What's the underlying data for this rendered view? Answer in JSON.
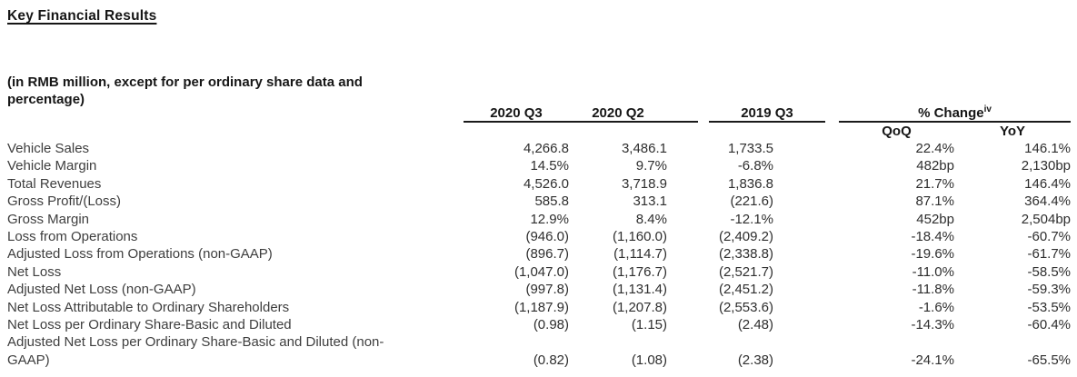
{
  "page": {
    "title": "Key Financial Results",
    "subtitle": "(in RMB million, except for per ordinary share data and percentage)"
  },
  "table": {
    "col_headers": [
      "2020 Q3",
      "2020 Q2",
      "2019 Q3"
    ],
    "change": {
      "label": "% Change",
      "sup": "iv",
      "sub": [
        "QoQ",
        "YoY"
      ]
    },
    "rows": [
      {
        "label": "Vehicle Sales",
        "q3_2020": "4,266.8",
        "q2_2020": "3,486.1",
        "q3_2019": "1,733.5",
        "qoq": "22.4%",
        "yoy": "146.1%"
      },
      {
        "label": "Vehicle Margin",
        "q3_2020": "14.5%",
        "q2_2020": "9.7%",
        "q3_2019": "-6.8%",
        "qoq": "482bp",
        "yoy": "2,130bp"
      },
      {
        "label": "Total Revenues",
        "q3_2020": "4,526.0",
        "q2_2020": "3,718.9",
        "q3_2019": "1,836.8",
        "qoq": "21.7%",
        "yoy": "146.4%"
      },
      {
        "label": "Gross Profit/(Loss)",
        "q3_2020": "585.8",
        "q2_2020": "313.1",
        "q3_2019": "(221.6)",
        "qoq": "87.1%",
        "yoy": "364.4%"
      },
      {
        "label": "Gross Margin",
        "q3_2020": "12.9%",
        "q2_2020": "8.4%",
        "q3_2019": "-12.1%",
        "qoq": "452bp",
        "yoy": "2,504bp"
      },
      {
        "label": "Loss from Operations",
        "q3_2020": "(946.0)",
        "q2_2020": "(1,160.0)",
        "q3_2019": "(2,409.2)",
        "qoq": "-18.4%",
        "yoy": "-60.7%"
      },
      {
        "label": "Adjusted Loss from Operations (non-GAAP)",
        "q3_2020": "(896.7)",
        "q2_2020": "(1,114.7)",
        "q3_2019": "(2,338.8)",
        "qoq": "-19.6%",
        "yoy": "-61.7%"
      },
      {
        "label": "Net Loss",
        "q3_2020": "(1,047.0)",
        "q2_2020": "(1,176.7)",
        "q3_2019": "(2,521.7)",
        "qoq": "-11.0%",
        "yoy": "-58.5%"
      },
      {
        "label": "Adjusted Net Loss (non-GAAP)",
        "q3_2020": "(997.8)",
        "q2_2020": "(1,131.4)",
        "q3_2019": "(2,451.2)",
        "qoq": "-11.8%",
        "yoy": "-59.3%"
      },
      {
        "label": "Net Loss Attributable to Ordinary Shareholders",
        "q3_2020": "(1,187.9)",
        "q2_2020": "(1,207.8)",
        "q3_2019": "(2,553.6)",
        "qoq": "-1.6%",
        "yoy": "-53.5%"
      },
      {
        "label": "Net Loss per Ordinary Share-Basic and Diluted",
        "q3_2020": "(0.98)",
        "q2_2020": "(1.15)",
        "q3_2019": "(2.48)",
        "qoq": "-14.3%",
        "yoy": "-60.4%"
      },
      {
        "label": "Adjusted Net Loss per Ordinary Share-Basic and Diluted (non-GAAP)",
        "q3_2020": "(0.82)",
        "q2_2020": "(1.08)",
        "q3_2019": "(2.38)",
        "qoq": "-24.1%",
        "yoy": "-65.5%"
      }
    ]
  }
}
